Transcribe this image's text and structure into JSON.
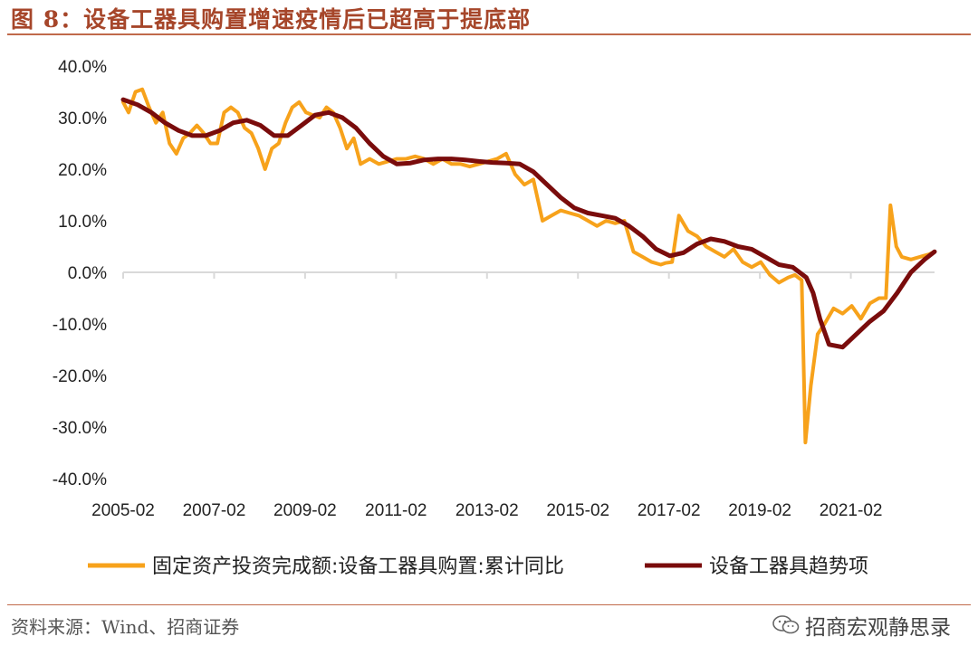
{
  "header": {
    "title": "图 8：设备工器具购置增速疫情后已超高于提底部"
  },
  "footer": {
    "source": "资料来源：Wind、招商证券",
    "watermark": "招商宏观静思录",
    "watermark_icon": "wechat-icon"
  },
  "colors": {
    "title": "#a6462a",
    "rule": "#c0694a",
    "series_actual": "#f7a21b",
    "series_trend": "#7a0c0c",
    "axis": "#d9d9d9"
  },
  "chart_data": {
    "type": "line",
    "ylim": [
      -40,
      40
    ],
    "yticks": [
      40,
      30,
      20,
      10,
      0,
      -10,
      -20,
      -30,
      -40
    ],
    "ytick_labels": [
      "40.0%",
      "30.0%",
      "20.0%",
      "10.0%",
      "0.0%",
      "-10.0%",
      "-20.0%",
      "-30.0%",
      "-40.0%"
    ],
    "xlim": [
      2005.08,
      2022.92
    ],
    "xtick_labels": [
      "2005-02",
      "2007-02",
      "2009-02",
      "2011-02",
      "2013-02",
      "2015-02",
      "2017-02",
      "2019-02",
      "2021-02"
    ],
    "xtick_values": [
      2005.08,
      2007.08,
      2009.08,
      2011.08,
      2013.08,
      2015.08,
      2017.08,
      2019.08,
      2021.08
    ],
    "legend_position": "bottom",
    "series": [
      {
        "name": "固定资产投资完成额:设备工器具购置:累计同比",
        "x": [
          2005.08,
          2005.2,
          2005.35,
          2005.5,
          2005.65,
          2005.8,
          2005.95,
          2006.1,
          2006.25,
          2006.4,
          2006.55,
          2006.7,
          2006.85,
          2007.0,
          2007.15,
          2007.3,
          2007.45,
          2007.6,
          2007.75,
          2007.9,
          2008.05,
          2008.2,
          2008.35,
          2008.5,
          2008.65,
          2008.8,
          2008.95,
          2009.1,
          2009.25,
          2009.4,
          2009.55,
          2009.7,
          2009.85,
          2010.0,
          2010.15,
          2010.3,
          2010.5,
          2010.7,
          2010.9,
          2011.1,
          2011.3,
          2011.5,
          2011.7,
          2011.9,
          2012.1,
          2012.3,
          2012.5,
          2012.7,
          2012.9,
          2013.1,
          2013.3,
          2013.5,
          2013.7,
          2013.9,
          2014.1,
          2014.3,
          2014.5,
          2014.7,
          2014.9,
          2015.1,
          2015.3,
          2015.5,
          2015.7,
          2015.9,
          2016.1,
          2016.3,
          2016.5,
          2016.7,
          2016.9,
          2017.0,
          2017.15,
          2017.3,
          2017.5,
          2017.7,
          2017.9,
          2018.1,
          2018.3,
          2018.5,
          2018.7,
          2018.9,
          2019.1,
          2019.3,
          2019.5,
          2019.7,
          2019.85,
          2020.0,
          2020.08,
          2020.2,
          2020.35,
          2020.5,
          2020.7,
          2020.9,
          2021.1,
          2021.3,
          2021.5,
          2021.7,
          2021.85,
          2021.95,
          2022.08,
          2022.2,
          2022.4,
          2022.6,
          2022.8,
          2022.92
        ],
        "y": [
          33,
          31,
          35,
          35.5,
          32,
          29,
          31,
          25,
          23,
          26,
          27,
          28.5,
          27,
          25,
          25,
          31,
          32,
          31,
          28,
          27,
          24,
          20,
          24,
          25,
          29,
          32,
          33,
          31,
          30.5,
          30,
          32,
          31,
          28,
          24,
          26,
          21,
          22,
          21,
          21.5,
          22,
          22,
          22.5,
          22,
          21,
          22,
          21,
          21,
          20.5,
          21,
          21.5,
          22,
          23,
          19,
          17,
          18,
          10,
          11,
          12,
          11.5,
          11,
          10,
          9,
          10,
          9.5,
          10,
          4,
          3,
          2,
          1.5,
          1.8,
          2,
          11,
          8,
          7,
          5,
          4,
          3,
          4.5,
          2,
          1,
          2,
          -0.5,
          -2,
          -1,
          -0.5,
          -1.5,
          -33,
          -22,
          -12,
          -10,
          -7,
          -8,
          -6.5,
          -9,
          -6,
          -5,
          -5,
          13,
          5,
          3,
          2.5,
          3,
          3.5,
          4
        ]
      },
      {
        "name": "设备工器具趋势项",
        "x": [
          2005.08,
          2005.4,
          2005.7,
          2006.0,
          2006.3,
          2006.6,
          2006.9,
          2007.2,
          2007.5,
          2007.8,
          2008.1,
          2008.4,
          2008.7,
          2009.0,
          2009.3,
          2009.6,
          2009.9,
          2010.2,
          2010.5,
          2010.8,
          2011.1,
          2011.4,
          2011.7,
          2012.0,
          2012.3,
          2012.6,
          2012.9,
          2013.2,
          2013.5,
          2013.8,
          2014.1,
          2014.4,
          2014.7,
          2015.0,
          2015.3,
          2015.6,
          2015.9,
          2016.2,
          2016.5,
          2016.8,
          2017.1,
          2017.4,
          2017.7,
          2018.0,
          2018.3,
          2018.6,
          2018.9,
          2019.2,
          2019.5,
          2019.8,
          2020.1,
          2020.25,
          2020.4,
          2020.6,
          2020.9,
          2021.2,
          2021.5,
          2021.8,
          2022.1,
          2022.4,
          2022.7,
          2022.92
        ],
        "y": [
          33.5,
          32.5,
          31,
          29,
          27.5,
          26.5,
          26.5,
          27.5,
          29,
          29.5,
          28.5,
          26.5,
          26.5,
          28.5,
          30.5,
          31,
          30,
          28,
          25,
          22.5,
          21,
          21.2,
          21.8,
          22,
          22,
          21.8,
          21.5,
          21.3,
          21.2,
          21,
          19.5,
          17,
          14.5,
          12.5,
          11.5,
          11,
          10.5,
          9,
          7,
          4.5,
          3.2,
          3.8,
          5.5,
          6.5,
          6,
          5,
          4.5,
          3,
          1.5,
          1,
          -1,
          -4,
          -9,
          -14,
          -14.5,
          -12,
          -9.5,
          -7.5,
          -4,
          0,
          2.5,
          4
        ]
      }
    ]
  }
}
